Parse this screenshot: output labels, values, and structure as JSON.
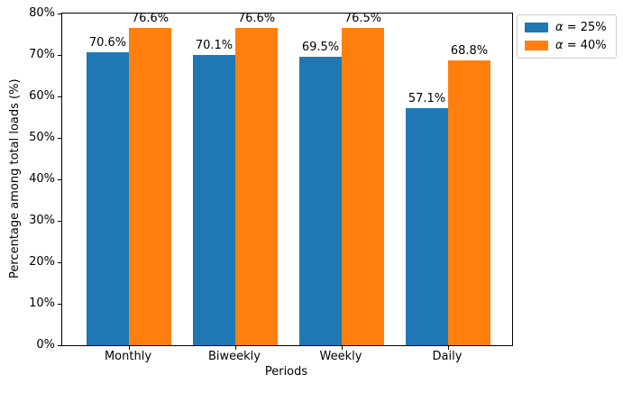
{
  "chart_data": {
    "type": "bar",
    "title": "",
    "xlabel": "Periods",
    "ylabel": "Percentage among total loads (%)",
    "categories": [
      "Monthly",
      "Biweekly",
      "Weekly",
      "Daily"
    ],
    "series": [
      {
        "name": "α = 25%",
        "symbol": "α",
        "label_rest": " = 25%",
        "color": "#1f77b4",
        "values": [
          70.6,
          70.1,
          69.5,
          57.1
        ],
        "value_labels": [
          "70.6%",
          "70.1%",
          "69.5%",
          "57.1%"
        ]
      },
      {
        "name": "α = 40%",
        "symbol": "α",
        "label_rest": " = 40%",
        "color": "#ff7f0e",
        "values": [
          76.6,
          76.6,
          76.5,
          68.8
        ],
        "value_labels": [
          "76.6%",
          "76.6%",
          "76.5%",
          "68.8%"
        ]
      }
    ],
    "ylim": [
      0,
      80
    ],
    "yticks": [
      0,
      10,
      20,
      30,
      40,
      50,
      60,
      70,
      80
    ],
    "ytick_labels": [
      "0%",
      "10%",
      "20%",
      "30%",
      "40%",
      "50%",
      "60%",
      "70%",
      "80%"
    ],
    "grid": false,
    "legend_position": "upper-right-outside"
  }
}
